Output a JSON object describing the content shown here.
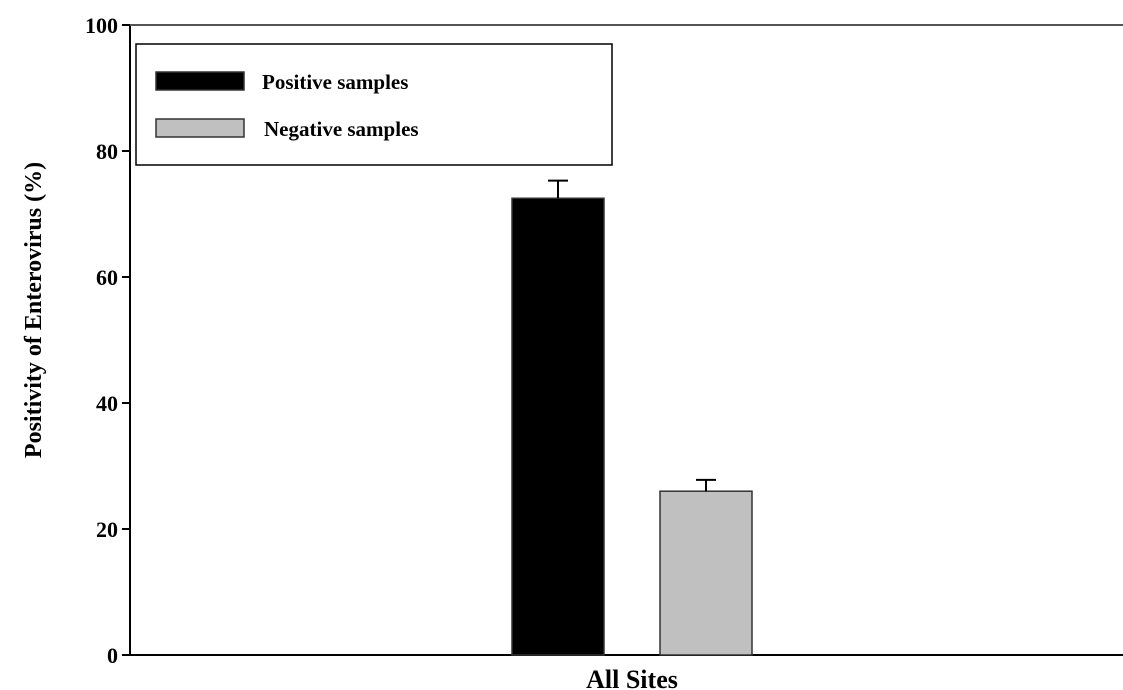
{
  "chart_data": {
    "type": "bar",
    "ylabel": "Positivity of Enterovirus (%)",
    "xlabel": "",
    "categories": [
      "All Sites"
    ],
    "ylim": [
      0,
      100
    ],
    "yticks": [
      "0",
      "20",
      "40",
      "60",
      "80",
      "100"
    ],
    "grid": false,
    "legend_position": "top-left",
    "series": [
      {
        "name": "Positive samples",
        "values": [
          72.5
        ],
        "error": [
          2.8
        ],
        "color": "#000000"
      },
      {
        "name": "Negative samples",
        "values": [
          26
        ],
        "error": [
          1.8
        ],
        "color": "#c0c0c0"
      }
    ]
  }
}
